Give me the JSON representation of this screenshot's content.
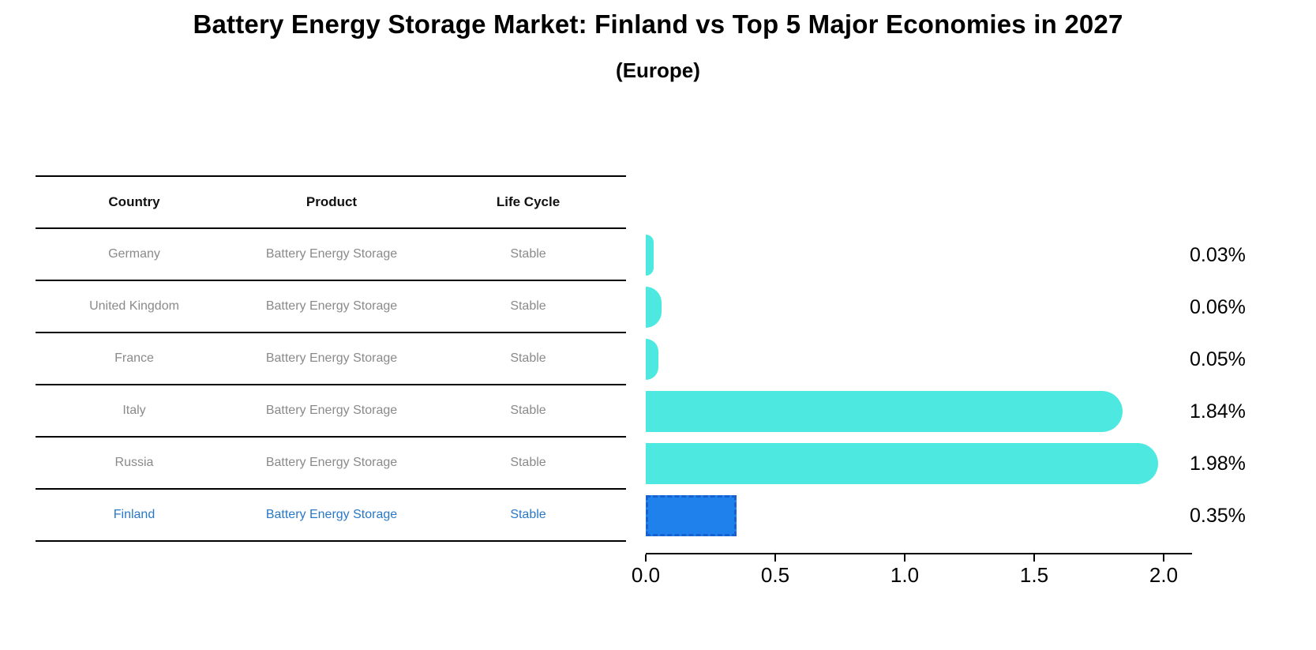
{
  "title": "Battery Energy Storage Market: Finland vs Top 5 Major Economies in 2027",
  "subtitle": "(Europe)",
  "table": {
    "headers": [
      "Country",
      "Product",
      "Life Cycle"
    ],
    "rows": [
      {
        "country": "Germany",
        "product": "Battery Energy Storage",
        "life_cycle": "Stable",
        "highlighted": false
      },
      {
        "country": "United Kingdom",
        "product": "Battery Energy Storage",
        "life_cycle": "Stable",
        "highlighted": false
      },
      {
        "country": "France",
        "product": "Battery Energy Storage",
        "life_cycle": "Stable",
        "highlighted": false
      },
      {
        "country": "Italy",
        "product": "Battery Energy Storage",
        "life_cycle": "Stable",
        "highlighted": false
      },
      {
        "country": "Russia",
        "product": "Battery Energy Storage",
        "life_cycle": "Stable",
        "highlighted": false
      },
      {
        "country": "Finland",
        "product": "Battery Energy Storage",
        "life_cycle": "Stable",
        "highlighted": true
      }
    ]
  },
  "chart_data": {
    "type": "bar",
    "orientation": "horizontal",
    "title": "Battery Energy Storage Market: Finland vs Top 5 Major Economies in 2027",
    "subtitle": "(Europe)",
    "categories": [
      "Germany",
      "United Kingdom",
      "France",
      "Italy",
      "Russia",
      "Finland"
    ],
    "values": [
      0.03,
      0.06,
      0.05,
      1.84,
      1.98,
      0.35
    ],
    "value_labels": [
      "0.03%",
      "0.06%",
      "0.05%",
      "1.84%",
      "1.98%",
      "0.35%"
    ],
    "unit": "%",
    "x_ticks": [
      0.0,
      0.5,
      1.0,
      1.5,
      2.0
    ],
    "x_tick_labels": [
      "0.0",
      "0.5",
      "1.0",
      "1.5",
      "2.0"
    ],
    "xlim": [
      0,
      2.11
    ],
    "highlight_index": 5,
    "grid": false,
    "legend": false
  },
  "colors": {
    "background": "#ffffff",
    "bar": "#4de9e1",
    "highlight_bar": "#1f81ec",
    "highlight_border": "#1861cf",
    "highlight_text": "#2878c8",
    "cell_text": "#8a8a8a",
    "header_text": "#111111",
    "axis": "#000000"
  }
}
